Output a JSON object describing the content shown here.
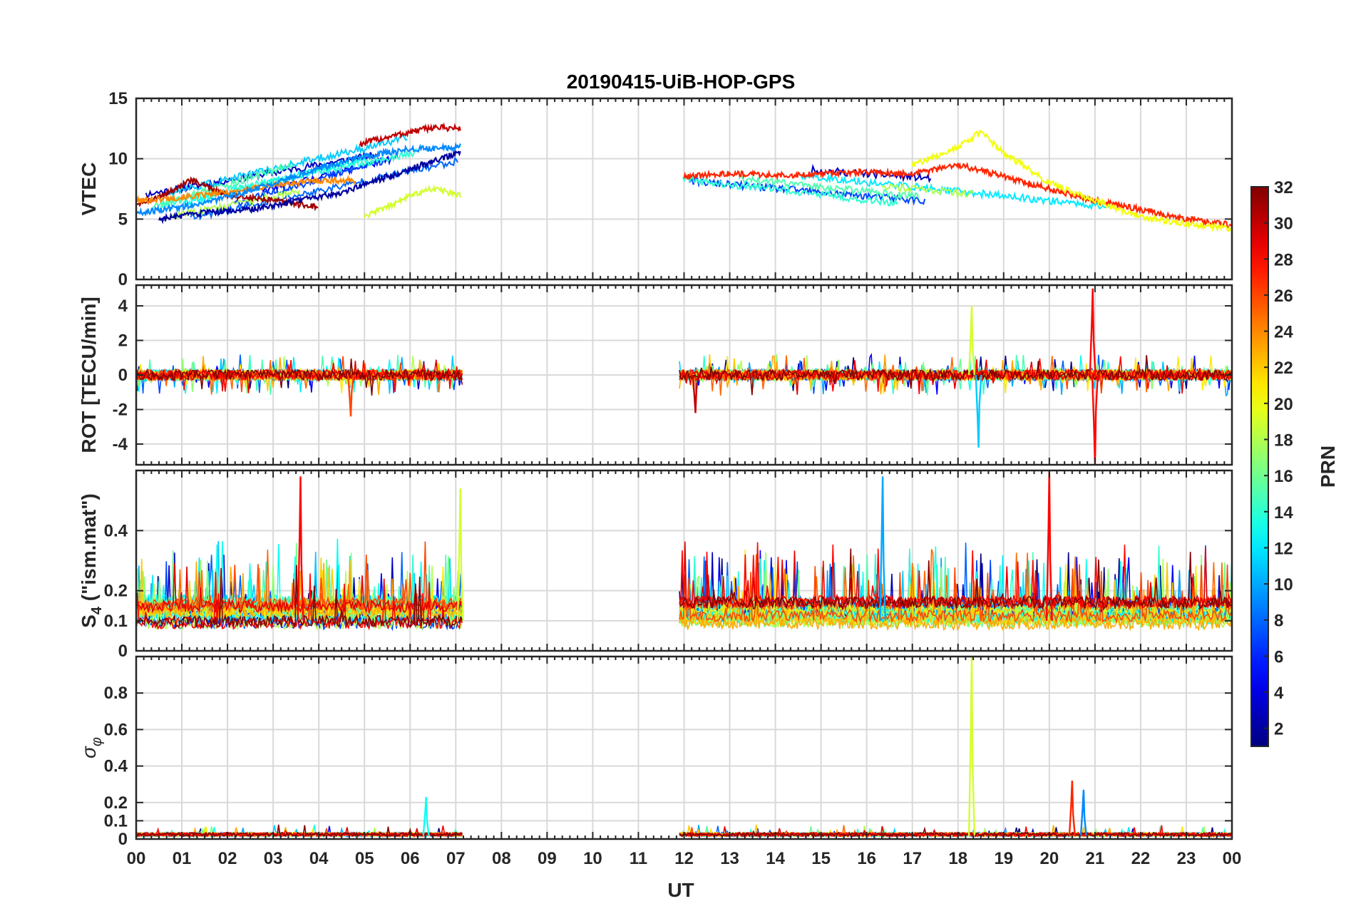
{
  "chart_data": {
    "type": "line",
    "title": "20190415-UiB-HOP-GPS",
    "xlabel": "UT",
    "x_ticks": [
      "00",
      "01",
      "02",
      "03",
      "04",
      "05",
      "06",
      "07",
      "08",
      "09",
      "10",
      "11",
      "12",
      "13",
      "14",
      "15",
      "16",
      "17",
      "18",
      "19",
      "20",
      "21",
      "22",
      "23",
      "00"
    ],
    "xlim": [
      0,
      24
    ],
    "grid": true,
    "data_gap_hours": [
      7.15,
      11.9
    ],
    "panels": [
      {
        "ylabel": "VTEC",
        "ylim": [
          0,
          15
        ],
        "y_ticks": [
          0,
          5,
          10,
          15
        ],
        "y_tick_labels": [
          "0",
          "5",
          "10",
          "15"
        ],
        "series_summary": [
          {
            "name": "PRN 31",
            "x": [
              0.0,
              0.5,
              1.2,
              2.0,
              3.0,
              4.0
            ],
            "y": [
              6.3,
              6.8,
              8.2,
              7.0,
              6.5,
              6.0
            ]
          },
          {
            "name": "PRN 24",
            "x": [
              0.0,
              1.0,
              2.0,
              3.0,
              4.0,
              4.8
            ],
            "y": [
              6.5,
              6.8,
              7.2,
              7.8,
              8.2,
              8.2
            ]
          },
          {
            "name": "PRN 9",
            "x": [
              0.0,
              1.0,
              2.0,
              3.0,
              4.0,
              5.0,
              6.0,
              7.1
            ],
            "y": [
              5.5,
              6.0,
              6.8,
              8.0,
              9.2,
              10.2,
              10.8,
              11.0
            ]
          },
          {
            "name": "PRN 2",
            "x": [
              0.5,
              1.5,
              2.5,
              3.5,
              4.5,
              5.5,
              6.5,
              7.1
            ],
            "y": [
              5.0,
              5.5,
              5.8,
              6.5,
              7.2,
              8.5,
              9.8,
              10.5
            ]
          },
          {
            "name": "PRN 30",
            "x": [
              4.9,
              5.5,
              6.0,
              6.5,
              7.1
            ],
            "y": [
              11.2,
              11.8,
              12.2,
              12.6,
              12.5
            ]
          },
          {
            "name": "PRN 19",
            "x": [
              5.0,
              5.5,
              6.0,
              6.5,
              7.1
            ],
            "y": [
              5.2,
              6.0,
              7.0,
              7.5,
              7.0
            ]
          },
          {
            "name": "PRN 27",
            "x": [
              12.0,
              13.0,
              14.0,
              15.0,
              16.0,
              17.0,
              18.0,
              19.0,
              20.0,
              21.0,
              22.0,
              23.0,
              24.0
            ],
            "y": [
              8.5,
              8.8,
              8.6,
              8.8,
              8.9,
              8.7,
              9.5,
              8.5,
              7.5,
              6.5,
              5.8,
              5.0,
              4.5
            ]
          },
          {
            "name": "PRN 20",
            "x": [
              17.0,
              17.5,
              18.0,
              18.5,
              19.0,
              20.0,
              21.0,
              22.0,
              23.0,
              24.0
            ],
            "y": [
              9.5,
              10.2,
              11.0,
              12.2,
              10.5,
              8.0,
              6.5,
              5.2,
              4.6,
              4.2
            ]
          }
        ]
      },
      {
        "ylabel": "ROT [TECU/min]",
        "ylim": [
          -5.2,
          5.2
        ],
        "y_ticks": [
          -4,
          -2,
          0,
          2,
          4
        ],
        "y_tick_labels": [
          "-4",
          "-2",
          "0",
          "2",
          "4"
        ],
        "notable_peaks": [
          {
            "name": "PRN 19",
            "x": 18.3,
            "y": 4.0
          },
          {
            "name": "PRN 11",
            "x": 18.45,
            "y": -4.2
          },
          {
            "name": "PRN 28",
            "x": 20.95,
            "y": 5.0
          },
          {
            "name": "PRN 28",
            "x": 21.0,
            "y": -5.2
          },
          {
            "name": "PRN 26",
            "x": 4.7,
            "y": -2.4
          },
          {
            "name": "PRN 30",
            "x": 12.25,
            "y": -2.2
          }
        ]
      },
      {
        "ylabel": "S4 (\"ism.mat\")",
        "ylabel_main": "S",
        "ylabel_sub": "4",
        "ylabel_rest": " (\"ism.mat\")",
        "ylim": [
          0,
          0.6
        ],
        "y_ticks": [
          0,
          0.1,
          0.2,
          0.4
        ],
        "y_tick_labels": [
          "0",
          "0.1",
          "0.2",
          "0.4"
        ],
        "notable_peaks": [
          {
            "name": "PRN 28",
            "x": 3.6,
            "y": 0.58
          },
          {
            "name": "PRN 19",
            "x": 7.1,
            "y": 0.54
          },
          {
            "name": "PRN 10",
            "x": 16.35,
            "y": 0.58
          },
          {
            "name": "PRN 28",
            "x": 20.0,
            "y": 0.6
          }
        ]
      },
      {
        "ylabel": "σφ",
        "ylabel_main": "σ",
        "ylabel_sub": "φ",
        "ylim": [
          0,
          1.0
        ],
        "y_ticks": [
          0,
          0.1,
          0.2,
          0.4,
          0.6,
          0.8
        ],
        "y_tick_labels": [
          "0",
          "0.1",
          "0.2",
          "0.4",
          "0.6",
          "0.8"
        ],
        "notable_peaks": [
          {
            "name": "PRN 19",
            "x": 18.3,
            "y": 1.0
          },
          {
            "name": "PRN 27",
            "x": 20.5,
            "y": 0.32
          },
          {
            "name": "PRN 9",
            "x": 20.75,
            "y": 0.27
          },
          {
            "name": "PRN 13",
            "x": 6.35,
            "y": 0.23
          }
        ]
      }
    ],
    "colorbar": {
      "label": "PRN",
      "range": [
        1,
        32
      ],
      "colormap": "jet",
      "ticks": [
        2,
        4,
        6,
        8,
        10,
        12,
        14,
        16,
        18,
        20,
        22,
        24,
        26,
        28,
        30,
        32
      ],
      "tick_labels": [
        "2",
        "4",
        "6",
        "8",
        "10",
        "12",
        "14",
        "16",
        "18",
        "20",
        "22",
        "24",
        "26",
        "28",
        "30",
        "32"
      ]
    }
  }
}
